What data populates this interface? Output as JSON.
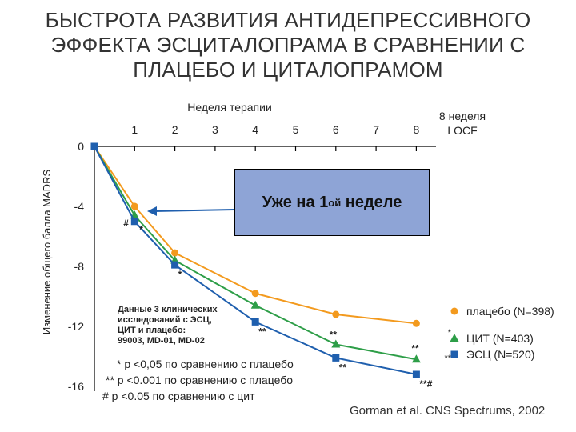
{
  "title_lines": [
    "БЫСТРОТА РАЗВИТИЯ АНТИДЕПРЕССИВНОГО",
    "ЭФФЕКТА ЭСЦИТАЛОПРАМА В СРАВНЕНИИ С",
    "ПЛАЦЕБО И ЦИТАЛОПРАМОМ"
  ],
  "chart_data": {
    "type": "line",
    "title": "",
    "xlabel": "Неделя терапии",
    "ylabel": "Изменение общего балла MADRS",
    "x": [
      0,
      1,
      2,
      4,
      6,
      8
    ],
    "x_ticks": [
      "1",
      "2",
      "3",
      "4",
      "5",
      "6",
      "7",
      "8"
    ],
    "x_tick_extra": [
      "8 неделя",
      "LOCF"
    ],
    "y_ticks": [
      "0",
      "-4",
      "-8",
      "-12",
      "-16"
    ],
    "ylim": [
      -16,
      0
    ],
    "grid": false,
    "legend_position": "right",
    "series": [
      {
        "name": "плацебо (N=398)",
        "color": "#f39a1e",
        "marker": "circle",
        "values": [
          0,
          -4.0,
          -7.1,
          -9.8,
          -11.2,
          -11.8
        ]
      },
      {
        "name": "ЦИТ (N=403)",
        "color": "#2e9e48",
        "marker": "triangle",
        "values": [
          0,
          -4.6,
          -7.6,
          -10.6,
          -13.2,
          -14.2
        ]
      },
      {
        "name": "ЭСЦ (N=520)",
        "color": "#1f5fae",
        "marker": "square",
        "values": [
          0,
          -5.0,
          -7.9,
          -11.7,
          -14.1,
          -15.2
        ]
      }
    ],
    "annotations": [
      {
        "series": 2,
        "index": 1,
        "text": "#",
        "side": "left"
      },
      {
        "series": 2,
        "index": 1,
        "text": "*",
        "side": "right"
      },
      {
        "series": 2,
        "index": 2,
        "text": "*",
        "side": "below"
      },
      {
        "series": 2,
        "index": 3,
        "text": "**",
        "side": "below"
      },
      {
        "series": 1,
        "index": 4,
        "text": "**",
        "side": "above-left"
      },
      {
        "series": 2,
        "index": 4,
        "text": "**",
        "side": "below"
      },
      {
        "series": 1,
        "index": 5,
        "text": "**",
        "side": "above"
      },
      {
        "series": 2,
        "index": 5,
        "text": "**#",
        "side": "below"
      }
    ]
  },
  "callout": {
    "text_before": "Уже на 1",
    "text_sup": "ой",
    "text_after": " неделе"
  },
  "study_note": [
    "Данные 3 клинических",
    "исследований с ЭСЦ,",
    "ЦИТ и плацебо:",
    "99003, MD-01, MD-02"
  ],
  "footnotes": [
    "* p <0,05 по сравнению с плацебо",
    "** p <0.001 по сравнению с плацебо",
    "# p <0.05 по сравнению с цит"
  ],
  "legend_markers": [
    "",
    "*",
    "**"
  ],
  "source": "Gorman et al. CNS Spectrums, 2002"
}
